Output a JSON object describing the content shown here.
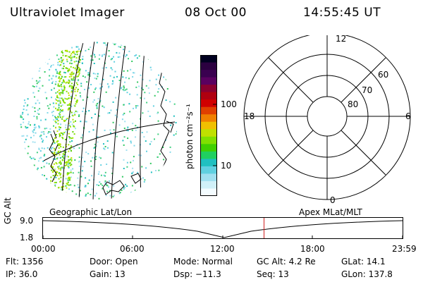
{
  "header": {
    "title": "Ultraviolet Imager",
    "date": "08 Oct 00",
    "time": "14:55:45 UT"
  },
  "image_panel": {
    "label": "Geographic Lat/Lon"
  },
  "colorbar": {
    "unit_label": "photon cm⁻²s⁻¹",
    "ticks": [
      "100",
      "10"
    ],
    "colors": [
      "#000020",
      "#2b0040",
      "#3a0050",
      "#5a0060",
      "#8a0030",
      "#b00010",
      "#d00000",
      "#e04000",
      "#f08000",
      "#f0c000",
      "#c0e000",
      "#80e000",
      "#40d000",
      "#20d060",
      "#20c0c0",
      "#60d0e0",
      "#a0e0f0",
      "#d0f0f8",
      "#f4fcff"
    ]
  },
  "polar_plot": {
    "label": "Apex MLat/MLT",
    "mlt_labels": [
      "12",
      "18",
      "6",
      "0"
    ],
    "lat_labels": [
      "60",
      "70",
      "80"
    ]
  },
  "altitude_plot": {
    "ylabel": "GC Alt",
    "yticks": [
      "9.0",
      "1.8"
    ],
    "xticks": [
      "00:00",
      "06:00",
      "12:00",
      "18:00",
      "23:59"
    ],
    "marker_color": "#d02020"
  },
  "info": {
    "flt": "Flt: 1356",
    "ip": "IP: 36.0",
    "door": "Door: Open",
    "gain": "Gain: 13",
    "mode": "Mode: Normal",
    "dsp": "Dsp:  −11.3",
    "gc_alt": "GC Alt: 4.2 Re",
    "seq": "Seq: 13",
    "glat": "GLat:  14.1",
    "glon": "GLon: 137.8"
  }
}
